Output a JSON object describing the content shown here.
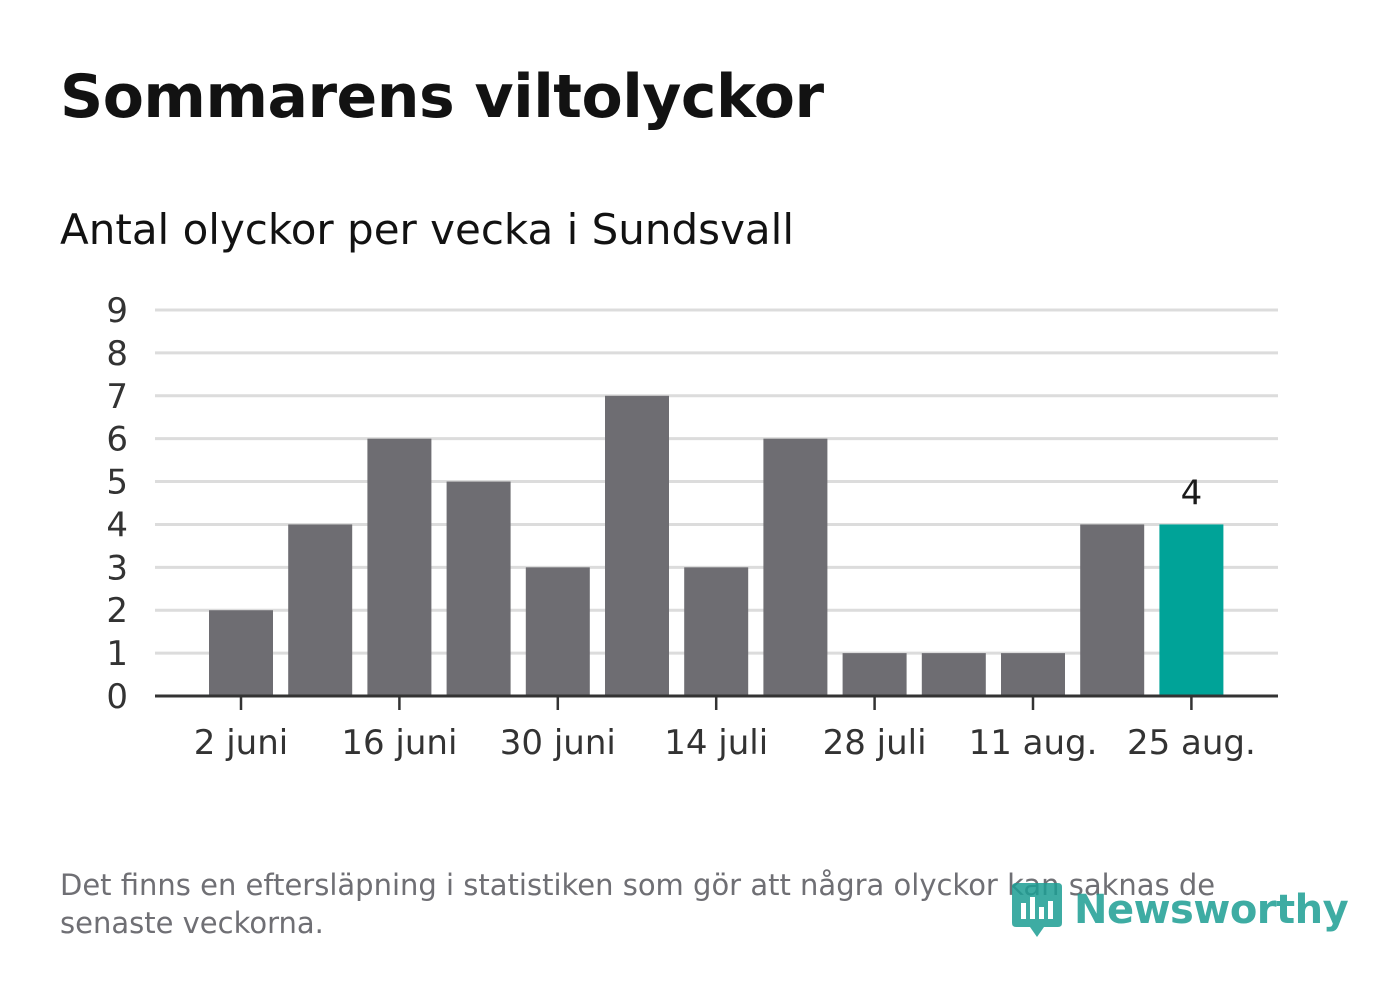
{
  "header": {
    "title": "Sommarens viltolyckor",
    "subtitle": "Antal olyckor per vecka i Sundsvall"
  },
  "footer": {
    "note": "Det finns en eftersläpning i statistiken som gör att några olyckor kan saknas de senaste veckorna.",
    "brand": "Newsworthy",
    "brand_icon": "newsworthy-logo-icon"
  },
  "colors": {
    "bar": "#6e6d72",
    "highlight": "#00a398",
    "grid": "#dcdcdc",
    "axis": "#333333",
    "text": "#333333"
  },
  "chart_data": {
    "type": "bar",
    "title": "Sommarens viltolyckor",
    "subtitle": "Antal olyckor per vecka i Sundsvall",
    "x_tick_labels": [
      "2 juni",
      "16 juni",
      "30 juni",
      "14 juli",
      "28 juli",
      "11 aug.",
      "25 aug."
    ],
    "x_tick_every": 2,
    "values": [
      2,
      4,
      6,
      5,
      3,
      7,
      3,
      6,
      1,
      1,
      1,
      4,
      4
    ],
    "highlight_index": 12,
    "highlight_label": "4",
    "ylim": [
      0,
      9
    ],
    "y_ticks": [
      0,
      1,
      2,
      3,
      4,
      5,
      6,
      7,
      8,
      9
    ],
    "grid": true,
    "legend": "none"
  }
}
